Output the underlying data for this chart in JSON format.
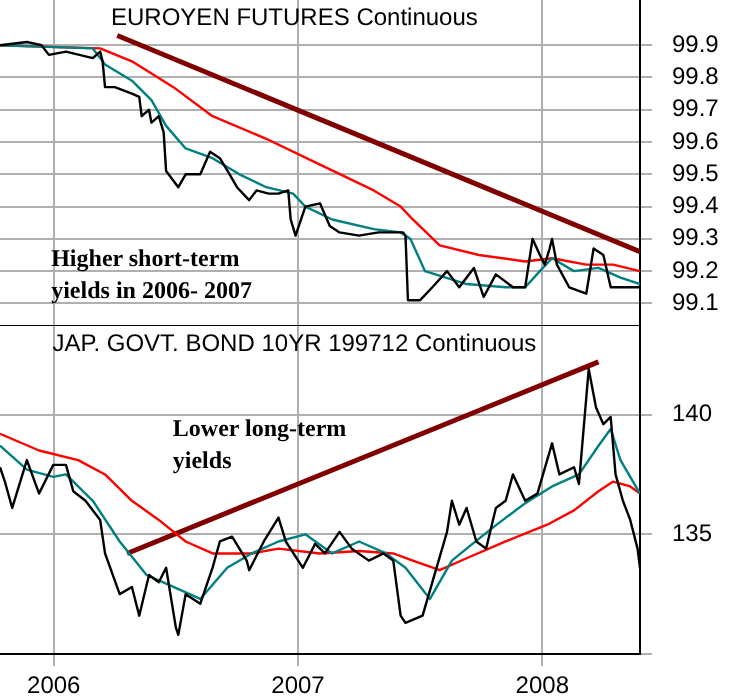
{
  "chart_data": [
    {
      "type": "line",
      "title": "EUROYEN FUTURES Continuous",
      "xlim": [
        2005.78,
        2008.4
      ],
      "xticks": [
        2006,
        2007,
        2008
      ],
      "ylim": [
        99.03,
        100.04
      ],
      "yticks": [
        99.1,
        99.2,
        99.3,
        99.4,
        99.5,
        99.6,
        99.7,
        99.8,
        99.9
      ],
      "grid": true,
      "legend": false,
      "marker": "none",
      "line_style": "solid",
      "tick_labels": "y",
      "annotations": [
        "Higher short-term\nyields in 2006- 2007"
      ],
      "series": [
        {
          "color": "#000000",
          "x": [
            2005.78,
            2005.89,
            2005.95,
            2005.98,
            2006.05,
            2006.16,
            2006.19,
            2006.2,
            2006.21,
            2006.25,
            2006.32,
            2006.35,
            2006.36,
            2006.39,
            2006.4,
            2006.43,
            2006.45,
            2006.46,
            2006.51,
            2006.54,
            2006.6,
            2006.64,
            2006.68,
            2006.72,
            2006.75,
            2006.8,
            2006.83,
            2006.88,
            2006.92,
            2006.96,
            2006.97,
            2006.99,
            2007.03,
            2007.09,
            2007.13,
            2007.17,
            2007.25,
            2007.33,
            2007.43,
            2007.44,
            2007.45,
            2007.5,
            2007.55,
            2007.61,
            2007.66,
            2007.72,
            2007.76,
            2007.81,
            2007.88,
            2007.93,
            2007.96,
            2007.99,
            2008.01,
            2008.03,
            2008.04,
            2008.06,
            2008.11,
            2008.18,
            2008.21,
            2008.25,
            2008.28,
            2008.32,
            2008.4
          ],
          "values": [
            99.9,
            99.91,
            99.9,
            99.87,
            99.88,
            99.86,
            99.88,
            99.85,
            99.77,
            99.77,
            99.75,
            99.74,
            99.68,
            99.7,
            99.66,
            99.68,
            99.63,
            99.51,
            99.46,
            99.5,
            99.5,
            99.57,
            99.55,
            99.5,
            99.46,
            99.42,
            99.45,
            99.44,
            99.44,
            99.45,
            99.36,
            99.31,
            99.4,
            99.41,
            99.34,
            99.32,
            99.31,
            99.32,
            99.32,
            99.31,
            99.11,
            99.11,
            99.15,
            99.2,
            99.15,
            99.21,
            99.12,
            99.19,
            99.15,
            99.15,
            99.3,
            99.25,
            99.22,
            99.27,
            99.3,
            99.22,
            99.15,
            99.13,
            99.27,
            99.25,
            99.15,
            99.15,
            99.15
          ]
        },
        {
          "color": "#008080",
          "x": [
            2005.78,
            2006.16,
            2006.21,
            2006.32,
            2006.4,
            2006.46,
            2006.54,
            2006.65,
            2006.76,
            2006.87,
            2006.98,
            2007.03,
            2007.14,
            2007.31,
            2007.42,
            2007.46,
            2007.52,
            2007.69,
            2007.85,
            2007.93,
            2007.99,
            2008.04,
            2008.13,
            2008.23,
            2008.32,
            2008.4
          ],
          "values": [
            99.9,
            99.89,
            99.84,
            99.79,
            99.73,
            99.65,
            99.58,
            99.55,
            99.5,
            99.46,
            99.44,
            99.4,
            99.36,
            99.33,
            99.32,
            99.3,
            99.2,
            99.16,
            99.15,
            99.15,
            99.2,
            99.24,
            99.2,
            99.21,
            99.18,
            99.16
          ]
        },
        {
          "color": "#ff0000",
          "x": [
            2005.78,
            2006.19,
            2006.32,
            2006.49,
            2006.65,
            2006.87,
            2007.09,
            2007.31,
            2007.42,
            2007.47,
            2007.58,
            2007.74,
            2007.93,
            2008.04,
            2008.18,
            2008.29,
            2008.4
          ],
          "values": [
            99.9,
            99.89,
            99.85,
            99.77,
            99.68,
            99.61,
            99.53,
            99.45,
            99.4,
            99.36,
            99.28,
            99.25,
            99.23,
            99.24,
            99.22,
            99.22,
            99.2
          ]
        },
        {
          "color": "#800000",
          "x": [
            2006.26,
            2008.4
          ],
          "values": [
            99.93,
            99.26
          ]
        }
      ]
    },
    {
      "type": "line",
      "title": "JAP. GOVT. BOND 10YR 199712 Continuous",
      "xlim": [
        2005.78,
        2008.4
      ],
      "xticks": [
        2006,
        2007,
        2008
      ],
      "ylim": [
        130,
        143.7
      ],
      "yticks": [
        {
          "value": 130,
          "label": null
        },
        135,
        140
      ],
      "grid": true,
      "legend": false,
      "marker": "none",
      "line_style": "solid",
      "annotations": [
        "Lower long-term\nyields"
      ],
      "series": [
        {
          "color": "#000000",
          "x": [
            2005.78,
            2005.8,
            2005.83,
            2005.89,
            2005.94,
            2005.998,
            2006.05,
            2006.08,
            2006.13,
            2006.19,
            2006.21,
            2006.27,
            2006.32,
            2006.35,
            2006.39,
            2006.43,
            2006.46,
            2006.5,
            2006.51,
            2006.54,
            2006.6,
            2006.65,
            2006.68,
            2006.73,
            2006.79,
            2006.8,
            2006.86,
            2006.92,
            2006.95,
            2007.02,
            2007.07,
            2007.11,
            2007.17,
            2007.22,
            2007.29,
            2007.35,
            2007.39,
            2007.42,
            2007.44,
            2007.51,
            2007.55,
            2007.61,
            2007.63,
            2007.66,
            2007.69,
            2007.73,
            2007.77,
            2007.81,
            2007.85,
            2007.88,
            2007.93,
            2007.98,
            2008.04,
            2008.07,
            2008.13,
            2008.15,
            2008.19,
            2008.22,
            2008.25,
            2008.28,
            2008.3,
            2008.33,
            2008.36,
            2008.39,
            2008.4
          ],
          "values": [
            137.8,
            137.2,
            136.1,
            138.1,
            136.7,
            137.9,
            137.9,
            136.8,
            136.4,
            135.6,
            134.2,
            132.5,
            132.8,
            131.6,
            133.3,
            133.0,
            133.6,
            131.1,
            130.8,
            132.5,
            132.1,
            133.6,
            134.7,
            134.9,
            133.9,
            133.5,
            134.7,
            135.7,
            134.7,
            133.6,
            134.6,
            134.2,
            135.1,
            134.4,
            133.9,
            134.2,
            133.9,
            131.6,
            131.3,
            131.6,
            133.0,
            135.1,
            136.4,
            135.4,
            136.1,
            134.7,
            134.4,
            136.1,
            136.4,
            137.5,
            136.4,
            136.7,
            138.8,
            137.5,
            137.8,
            137.1,
            141.9,
            140.3,
            139.6,
            139.9,
            137.5,
            136.4,
            135.6,
            134.4,
            133.6
          ]
        },
        {
          "color": "#008080",
          "x": [
            2005.78,
            2005.89,
            2005.998,
            2006.05,
            2006.16,
            2006.27,
            2006.38,
            2006.49,
            2006.6,
            2006.71,
            2006.81,
            2006.92,
            2007.03,
            2007.14,
            2007.25,
            2007.36,
            2007.44,
            2007.54,
            2007.63,
            2007.69,
            2007.8,
            2007.93,
            2008.04,
            2008.15,
            2008.23,
            2008.28,
            2008.32,
            2008.4
          ],
          "values": [
            138.7,
            137.7,
            137.4,
            137.5,
            136.4,
            134.7,
            133.3,
            132.8,
            132.3,
            133.6,
            134.2,
            134.7,
            135.0,
            134.2,
            134.7,
            134.2,
            133.6,
            132.3,
            133.9,
            134.4,
            135.3,
            136.3,
            137.0,
            137.5,
            138.7,
            139.4,
            138.1,
            136.7
          ]
        },
        {
          "color": "#ff0000",
          "x": [
            2005.78,
            2005.94,
            2006.1,
            2006.21,
            2006.32,
            2006.43,
            2006.54,
            2006.65,
            2006.81,
            2006.92,
            2007.09,
            2007.25,
            2007.39,
            2007.47,
            2007.58,
            2007.69,
            2007.85,
            2008.02,
            2008.13,
            2008.23,
            2008.29,
            2008.36,
            2008.4
          ],
          "values": [
            139.2,
            138.5,
            138.1,
            137.5,
            136.4,
            135.6,
            134.7,
            134.2,
            134.2,
            134.4,
            134.2,
            134.3,
            134.2,
            133.9,
            133.5,
            134.0,
            134.7,
            135.4,
            136.0,
            136.8,
            137.2,
            137.0,
            136.7
          ]
        },
        {
          "color": "#800000",
          "x": [
            2006.3,
            2008.23
          ],
          "values": [
            134.2,
            142.2
          ]
        }
      ]
    }
  ]
}
